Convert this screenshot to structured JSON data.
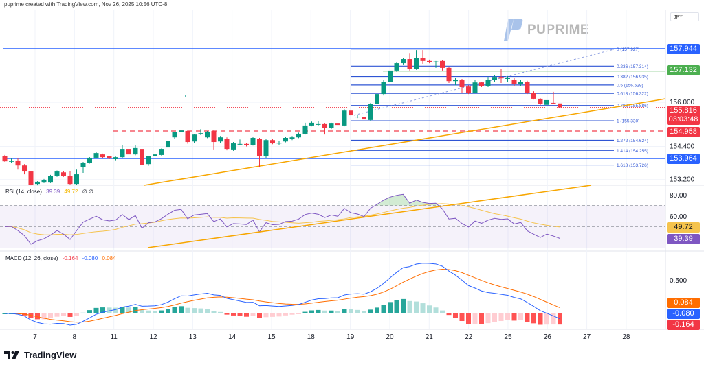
{
  "header": {
    "attribution": "puprime created with TradingView.com, Nov 26, 2025 10:56 UTC-8",
    "currency": "JPY"
  },
  "watermark": "PUPRIME",
  "footer": {
    "brand": "TradingView"
  },
  "colors": {
    "up": "#089981",
    "down": "#f23645",
    "blue_line": "#2962ff",
    "green_line": "#4caf50",
    "red_dashed": "#f23645",
    "trendline": "#f7a600",
    "fib": "#2f55d4",
    "rsi": "#7e57c2",
    "rsi_ma": "#f5c34d",
    "macd": "#2962ff",
    "signal": "#ff6d00"
  },
  "chart_data": {
    "type": "candlestick",
    "x_labels": [
      "7",
      "8",
      "11",
      "12",
      "13",
      "14",
      "15",
      "18",
      "19",
      "20",
      "21",
      "22",
      "25",
      "26",
      "27",
      "28"
    ],
    "price_ticks": [
      "156.000",
      "154.400",
      "153.200"
    ],
    "candles_ohlc": [
      [
        154.04,
        154.09,
        153.84,
        153.86
      ],
      [
        153.86,
        153.96,
        153.79,
        153.87
      ],
      [
        153.89,
        153.99,
        153.56,
        153.71
      ],
      [
        153.71,
        153.76,
        153.39,
        153.49
      ],
      [
        153.49,
        153.51,
        152.99,
        153.0
      ],
      [
        153.04,
        153.14,
        152.99,
        153.12
      ],
      [
        153.09,
        153.22,
        153.07,
        153.19
      ],
      [
        153.09,
        153.37,
        153.07,
        153.32
      ],
      [
        153.34,
        153.53,
        153.3,
        153.49
      ],
      [
        153.46,
        153.49,
        153.3,
        153.32
      ],
      [
        153.32,
        153.49,
        153.02,
        153.04
      ],
      [
        153.04,
        153.56,
        153.0,
        153.39
      ],
      [
        153.66,
        153.84,
        153.44,
        153.81
      ],
      [
        153.81,
        154.01,
        153.78,
        153.99
      ],
      [
        153.99,
        154.2,
        153.96,
        154.16
      ],
      [
        154.11,
        154.14,
        153.99,
        154.01
      ],
      [
        154.04,
        154.06,
        153.94,
        153.96
      ],
      [
        153.94,
        154.03,
        153.9,
        154.01
      ],
      [
        154.01,
        154.46,
        153.99,
        154.31
      ],
      [
        154.31,
        154.34,
        154.06,
        154.11
      ],
      [
        154.11,
        154.46,
        154.08,
        154.34
      ],
      [
        154.31,
        154.33,
        153.64,
        153.74
      ],
      [
        153.76,
        154.06,
        153.7,
        154.06
      ],
      [
        154.06,
        154.13,
        154.04,
        154.11
      ],
      [
        154.09,
        154.33,
        154.06,
        154.31
      ],
      [
        154.36,
        154.78,
        154.33,
        154.61
      ],
      [
        154.73,
        154.93,
        154.68,
        154.91
      ],
      [
        154.91,
        155.0,
        154.86,
        154.98
      ],
      [
        154.96,
        155.0,
        154.5,
        154.56
      ],
      [
        154.58,
        154.86,
        154.53,
        154.83
      ],
      [
        154.88,
        155.03,
        154.81,
        154.88
      ],
      [
        154.73,
        154.96,
        154.7,
        154.93
      ],
      [
        154.96,
        154.98,
        154.29,
        154.56
      ],
      [
        154.58,
        154.78,
        154.53,
        154.73
      ],
      [
        154.68,
        154.73,
        154.26,
        154.31
      ],
      [
        154.29,
        154.56,
        154.24,
        154.51
      ],
      [
        154.49,
        154.65,
        154.45,
        154.49
      ],
      [
        154.49,
        154.52,
        154.4,
        154.46
      ],
      [
        154.46,
        154.75,
        154.43,
        154.71
      ],
      [
        154.68,
        154.71,
        153.64,
        154.06
      ],
      [
        154.06,
        154.66,
        153.98,
        154.63
      ],
      [
        154.63,
        154.66,
        154.48,
        154.51
      ],
      [
        154.53,
        154.6,
        154.45,
        154.53
      ],
      [
        154.58,
        154.76,
        154.55,
        154.71
      ],
      [
        154.68,
        154.78,
        154.63,
        154.73
      ],
      [
        154.73,
        154.9,
        154.7,
        154.86
      ],
      [
        154.86,
        155.26,
        154.83,
        155.16
      ],
      [
        155.16,
        155.3,
        155.13,
        155.26
      ],
      [
        155.21,
        155.33,
        155.16,
        155.21
      ],
      [
        155.21,
        155.23,
        154.83,
        155.08
      ],
      [
        155.08,
        155.26,
        155.03,
        155.23
      ],
      [
        155.23,
        155.3,
        155.16,
        155.18
      ],
      [
        155.16,
        155.75,
        155.13,
        155.7
      ],
      [
        155.7,
        155.73,
        155.5,
        155.53
      ],
      [
        155.48,
        155.55,
        155.43,
        155.48
      ],
      [
        155.48,
        155.5,
        155.33,
        155.38
      ],
      [
        155.36,
        155.98,
        155.33,
        155.95
      ],
      [
        155.95,
        156.33,
        155.93,
        156.3
      ],
      [
        156.3,
        156.8,
        156.25,
        156.75
      ],
      [
        156.75,
        157.2,
        156.55,
        157.15
      ],
      [
        157.15,
        157.45,
        157.1,
        157.42
      ],
      [
        157.42,
        157.6,
        157.35,
        157.57
      ],
      [
        157.57,
        157.79,
        157.15,
        157.2
      ],
      [
        157.2,
        157.89,
        157.18,
        157.6
      ],
      [
        157.6,
        157.89,
        157.4,
        157.5
      ],
      [
        157.5,
        157.55,
        157.42,
        157.45
      ],
      [
        157.45,
        157.5,
        157.25,
        157.48
      ],
      [
        157.5,
        157.52,
        157.15,
        157.25
      ],
      [
        157.25,
        157.28,
        156.7,
        156.77
      ],
      [
        156.77,
        156.88,
        156.62,
        156.82
      ],
      [
        156.82,
        156.85,
        156.35,
        156.55
      ],
      [
        156.57,
        156.62,
        156.3,
        156.35
      ],
      [
        156.35,
        156.8,
        156.33,
        156.72
      ],
      [
        156.72,
        156.75,
        156.55,
        156.6
      ],
      [
        156.6,
        156.92,
        156.55,
        156.8
      ],
      [
        156.8,
        157.0,
        156.75,
        156.92
      ],
      [
        156.92,
        157.22,
        156.7,
        156.87
      ],
      [
        156.85,
        156.95,
        156.75,
        156.9
      ],
      [
        156.82,
        156.9,
        156.6,
        156.67
      ],
      [
        156.65,
        156.8,
        156.6,
        156.75
      ],
      [
        156.75,
        156.78,
        156.3,
        156.33
      ],
      [
        156.33,
        156.4,
        156.1,
        156.13
      ],
      [
        156.13,
        156.15,
        155.9,
        155.93
      ],
      [
        155.91,
        156.12,
        155.88,
        156.08
      ],
      [
        155.98,
        156.38,
        155.95,
        155.96
      ],
      [
        155.96,
        156.0,
        155.7,
        155.816
      ]
    ],
    "horizontal_lines": [
      {
        "price": 157.944,
        "label": "157.944",
        "color": "#2962ff",
        "style": "solid"
      },
      {
        "price": 157.132,
        "label": "157.132",
        "color": "#4caf50",
        "style": "solid"
      },
      {
        "price": 154.958,
        "label": "154.958",
        "color": "#f23645",
        "style": "dashed"
      },
      {
        "price": 153.964,
        "label": "153.964",
        "color": "#2962ff",
        "style": "solid"
      }
    ],
    "last_price": {
      "price": 155.816,
      "label": "155.816",
      "countdown": "03:03:48"
    },
    "fib_levels": [
      {
        "price": 157.927,
        "label": "0 (157.927)"
      },
      {
        "price": 157.314,
        "label": "0.236 (157.314)"
      },
      {
        "price": 156.935,
        "label": "0.382 (156.935)"
      },
      {
        "price": 156.629,
        "label": "0.5 (156.629)"
      },
      {
        "price": 156.322,
        "label": "0.618 (156.322)"
      },
      {
        "price": 155.886,
        "label": "0.786 (155.886)"
      },
      {
        "price": 155.33,
        "label": "1 (155.330)"
      },
      {
        "price": 154.624,
        "label": "1.272 (154.624)"
      },
      {
        "price": 154.255,
        "label": "1.414 (154.255)"
      },
      {
        "price": 153.726,
        "label": "1.618 (153.726)"
      }
    ],
    "rsi": {
      "title": "RSI (14, close)",
      "value": "39.39",
      "ma": "49.72",
      "extra": "∅ ∅",
      "ticks": [
        "80.00",
        "60.00"
      ],
      "upper_band": 70,
      "middle_band": 50,
      "lower_band": 30
    },
    "macd": {
      "title": "MACD (12, 26, close)",
      "histogram": "-0.164",
      "macd": "-0.080",
      "signal": "0.084",
      "ticks": [
        "0.500"
      ]
    }
  }
}
